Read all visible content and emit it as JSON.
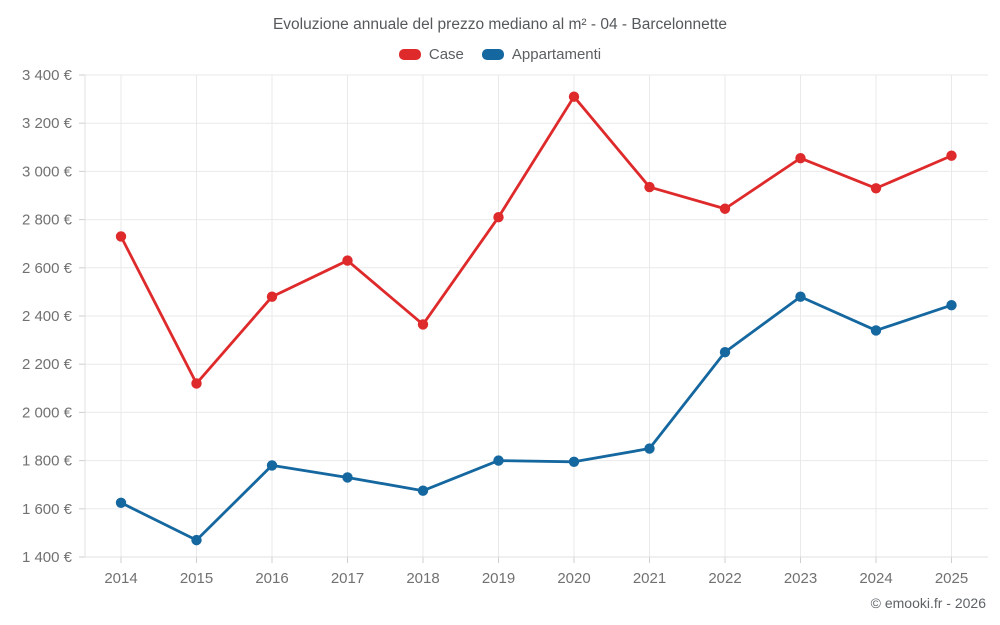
{
  "title": "Evoluzione annuale del prezzo mediano al m² - 04 - Barcelonnette",
  "legend": {
    "items": [
      {
        "label": "Case",
        "color": "#de2a2b"
      },
      {
        "label": "Appartamenti",
        "color": "#15679f"
      }
    ]
  },
  "footer": {
    "text": "© emooki.fr - 2026"
  },
  "chart_data": {
    "type": "line",
    "title": "Evoluzione annuale del prezzo mediano al m² - 04 - Barcelonnette",
    "categories": [
      "2014",
      "2015",
      "2016",
      "2017",
      "2018",
      "2019",
      "2020",
      "2021",
      "2022",
      "2023",
      "2024",
      "2025"
    ],
    "series": [
      {
        "name": "Case",
        "color": "#de2a2b",
        "values": [
          2730,
          2120,
          2480,
          2630,
          2365,
          2810,
          3310,
          2935,
          2845,
          3055,
          2930,
          3065
        ]
      },
      {
        "name": "Appartamenti",
        "color": "#15679f",
        "values": [
          1625,
          1470,
          1780,
          1730,
          1675,
          1800,
          1795,
          1850,
          2250,
          2480,
          2340,
          2445
        ]
      }
    ],
    "xlabel": "",
    "ylabel": "",
    "ylim": [
      1400,
      3400
    ],
    "ytick_step": 200,
    "ytick_labels": [
      "1 400 €",
      "1 600 €",
      "1 800 €",
      "2 000 €",
      "2 200 €",
      "2 400 €",
      "2 600 €",
      "2 800 €",
      "3 000 €",
      "3 200 €",
      "3 400 €"
    ],
    "grid": true,
    "legend_position": "top",
    "annotations": []
  },
  "colors": {
    "grid_line": "#e9e9e9",
    "axis_line": "#e0e0e0",
    "tick_mark": "#cfcfcf",
    "axis_text": "#717171",
    "title_text": "#55595c",
    "background": "#ffffff"
  }
}
